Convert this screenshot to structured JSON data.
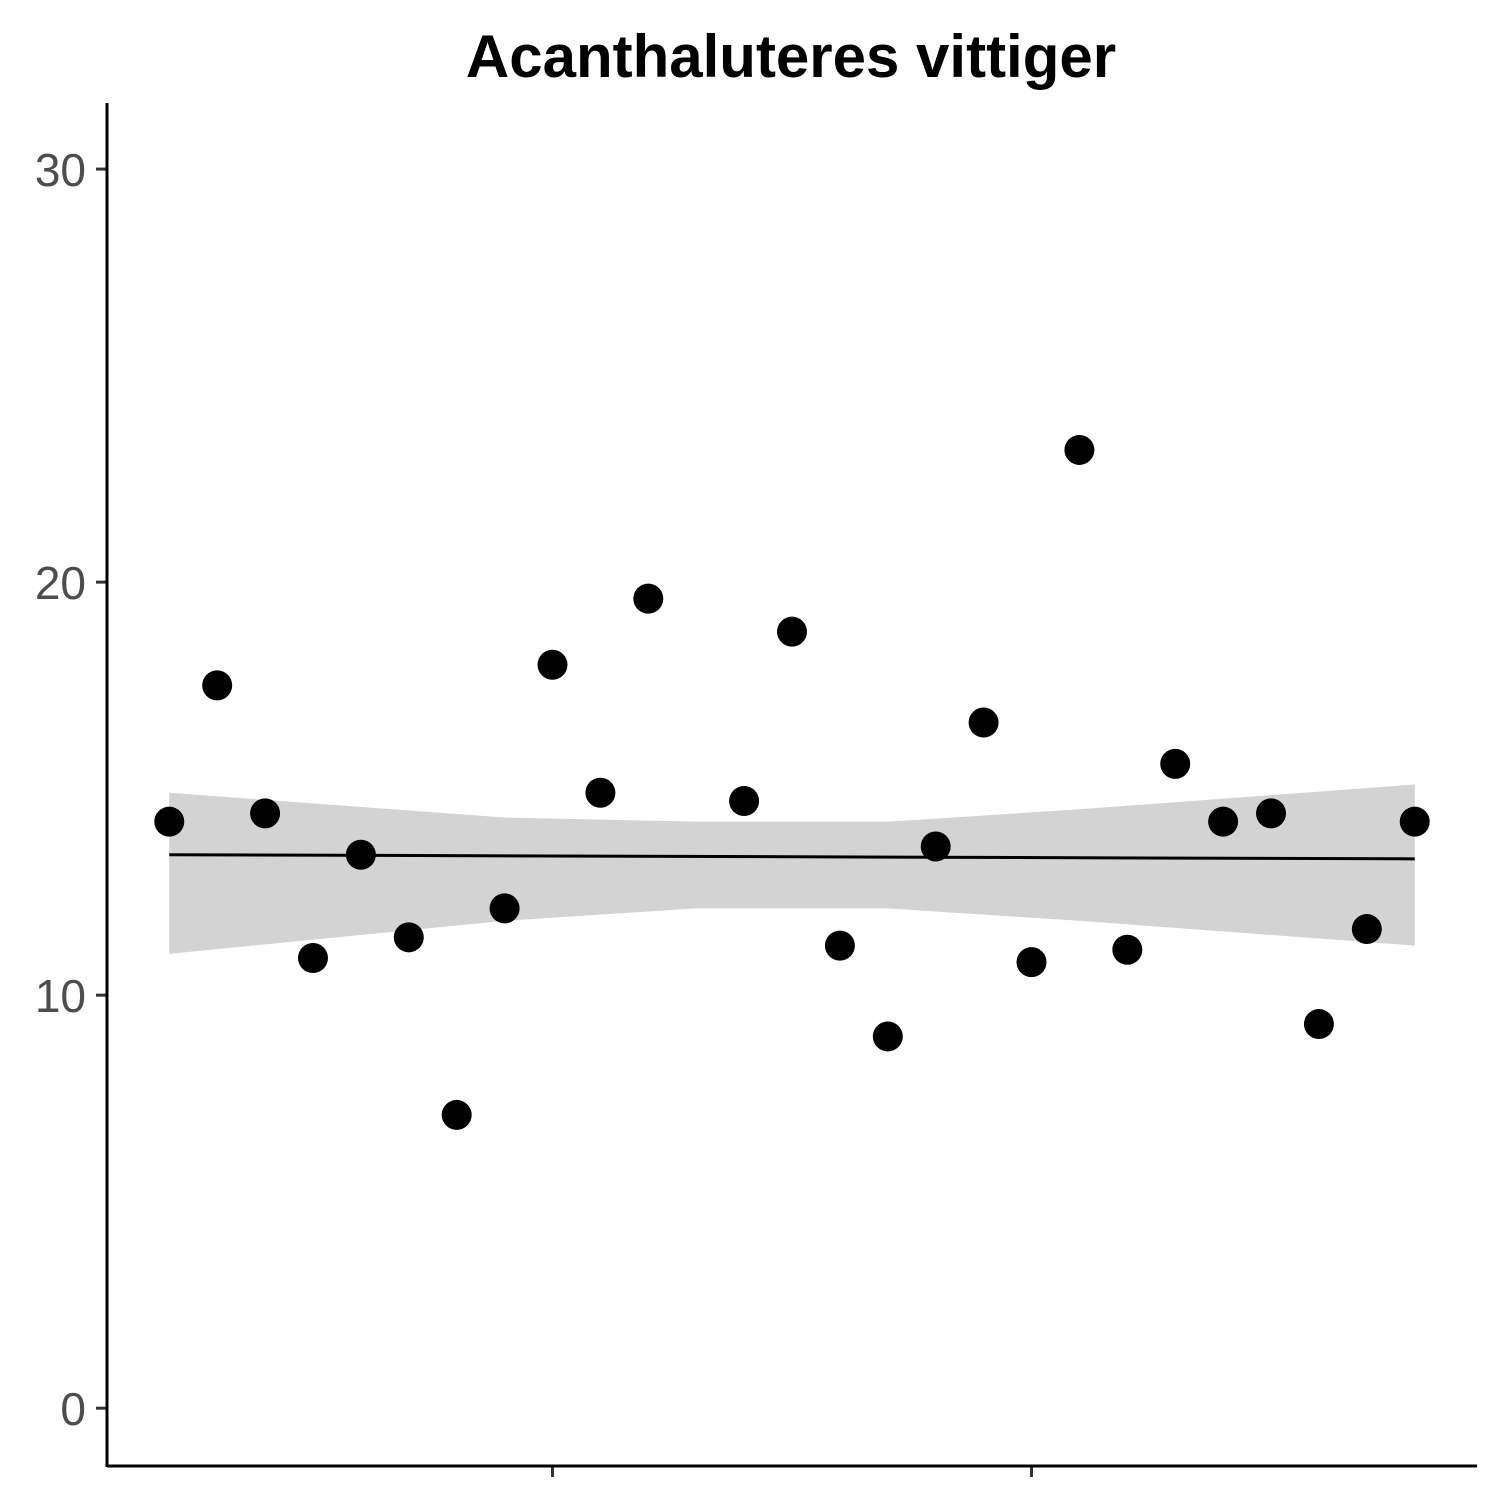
{
  "chart_data": {
    "type": "scatter",
    "title": "Acanthaluteres vittiger",
    "xlabel": "",
    "ylabel": "",
    "xlim": [
      1995.7,
      2024.3
    ],
    "ylim": [
      -1.4,
      31.6
    ],
    "y_ticks": [
      0,
      10,
      20,
      30
    ],
    "y_tick_labels": [
      "0",
      "10",
      "20",
      "30"
    ],
    "x_ticks": [
      2005,
      2015
    ],
    "x_tick_labels": [
      "",
      ""
    ],
    "grid": false,
    "legend": "none",
    "points": [
      {
        "x": 1997,
        "y": 14.2
      },
      {
        "x": 1998,
        "y": 17.5
      },
      {
        "x": 1999,
        "y": 14.4
      },
      {
        "x": 2000,
        "y": 10.9
      },
      {
        "x": 2001,
        "y": 13.4
      },
      {
        "x": 2002,
        "y": 11.4
      },
      {
        "x": 2003,
        "y": 7.1
      },
      {
        "x": 2004,
        "y": 12.1
      },
      {
        "x": 2005,
        "y": 18.0
      },
      {
        "x": 2006,
        "y": 14.9
      },
      {
        "x": 2007,
        "y": 19.6
      },
      {
        "x": 2009,
        "y": 14.7
      },
      {
        "x": 2010,
        "y": 18.8
      },
      {
        "x": 2011,
        "y": 11.2
      },
      {
        "x": 2012,
        "y": 9.0
      },
      {
        "x": 2013,
        "y": 13.6
      },
      {
        "x": 2014,
        "y": 16.6
      },
      {
        "x": 2015,
        "y": 10.8
      },
      {
        "x": 2016,
        "y": 23.2
      },
      {
        "x": 2017,
        "y": 11.1
      },
      {
        "x": 2018,
        "y": 15.6
      },
      {
        "x": 2019,
        "y": 14.2
      },
      {
        "x": 2020,
        "y": 14.4
      },
      {
        "x": 2021,
        "y": 9.3
      },
      {
        "x": 2022,
        "y": 11.6
      },
      {
        "x": 2023,
        "y": 14.2
      }
    ],
    "fit": {
      "method": "linear",
      "line": [
        [
          1997,
          13.4
        ],
        [
          2023,
          13.3
        ]
      ],
      "ci_band": [
        {
          "x": 1997,
          "lower": 11.0,
          "upper": 14.9
        },
        {
          "x": 2004,
          "lower": 11.8,
          "upper": 14.3
        },
        {
          "x": 2008,
          "lower": 12.1,
          "upper": 14.2
        },
        {
          "x": 2012,
          "lower": 12.1,
          "upper": 14.2
        },
        {
          "x": 2016,
          "lower": 11.8,
          "upper": 14.5
        },
        {
          "x": 2023,
          "lower": 11.2,
          "upper": 15.1
        }
      ],
      "band_color": "#d3d3d3",
      "line_color": "#000000"
    },
    "point_color": "#000000"
  }
}
